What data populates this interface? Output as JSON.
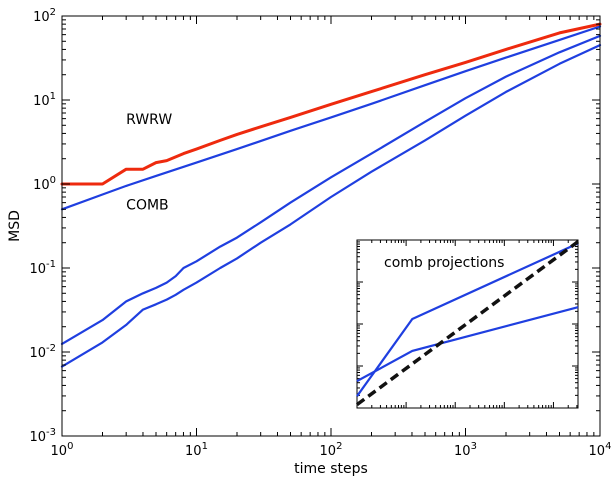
{
  "chart_data": [
    {
      "type": "line",
      "xlabel": "time steps",
      "ylabel": "MSD",
      "x_scale": "log",
      "y_scale": "log",
      "xlim": [
        1,
        10000
      ],
      "ylim": [
        0.001,
        100
      ],
      "x_ticks": [
        {
          "value": 1,
          "base": "10",
          "exp": "0"
        },
        {
          "value": 10,
          "base": "10",
          "exp": "1"
        },
        {
          "value": 100,
          "base": "10",
          "exp": "2"
        },
        {
          "value": 1000,
          "base": "10",
          "exp": "3"
        },
        {
          "value": 10000,
          "base": "10",
          "exp": "4"
        }
      ],
      "y_ticks": [
        {
          "value": 0.001,
          "base": "10",
          "exp": "-3"
        },
        {
          "value": 0.01,
          "base": "10",
          "exp": "-2"
        },
        {
          "value": 0.1,
          "base": "10",
          "exp": "-1"
        },
        {
          "value": 1,
          "base": "10",
          "exp": "0"
        },
        {
          "value": 10,
          "base": "10",
          "exp": "1"
        },
        {
          "value": 100,
          "base": "10",
          "exp": "2"
        }
      ],
      "grid": false,
      "annotations": [
        {
          "text": "RWRW",
          "x": 3,
          "y": 5.2
        },
        {
          "text": "COMB",
          "x": 3,
          "y": 0.5
        }
      ],
      "series": [
        {
          "color": "#ee2a0e",
          "width": 3,
          "points": [
            [
              1,
              1
            ],
            [
              2,
              1
            ],
            [
              3,
              1.5
            ],
            [
              4,
              1.5
            ],
            [
              5,
              1.8
            ],
            [
              6,
              1.9
            ],
            [
              8,
              2.3
            ],
            [
              10,
              2.6
            ],
            [
              15,
              3.3
            ],
            [
              20,
              3.9
            ],
            [
              30,
              4.8
            ],
            [
              50,
              6.2
            ],
            [
              100,
              8.9
            ],
            [
              200,
              12.6
            ],
            [
              500,
              20
            ],
            [
              1000,
              28
            ],
            [
              2000,
              40
            ],
            [
              5000,
              63
            ],
            [
              10000,
              80
            ]
          ]
        },
        {
          "color": "#1f3fe0",
          "width": 2.2,
          "points": [
            [
              1,
              0.5
            ],
            [
              2,
              0.75
            ],
            [
              3,
              0.95
            ],
            [
              5,
              1.25
            ],
            [
              10,
              1.8
            ],
            [
              20,
              2.6
            ],
            [
              50,
              4.3
            ],
            [
              100,
              6.2
            ],
            [
              200,
              9
            ],
            [
              500,
              15
            ],
            [
              1000,
              22
            ],
            [
              2000,
              32
            ],
            [
              5000,
              52
            ],
            [
              10000,
              75
            ]
          ]
        },
        {
          "color": "#1f3fe0",
          "width": 2.2,
          "points": [
            [
              1,
              0.0125
            ],
            [
              2,
              0.024
            ],
            [
              3,
              0.04
            ],
            [
              4,
              0.05
            ],
            [
              5,
              0.058
            ],
            [
              6,
              0.067
            ],
            [
              7,
              0.08
            ],
            [
              8,
              0.1
            ],
            [
              10,
              0.12
            ],
            [
              15,
              0.18
            ],
            [
              20,
              0.23
            ],
            [
              30,
              0.35
            ],
            [
              50,
              0.6
            ],
            [
              100,
              1.2
            ],
            [
              200,
              2.3
            ],
            [
              500,
              5.5
            ],
            [
              1000,
              10.5
            ],
            [
              2000,
              19
            ],
            [
              5000,
              37
            ],
            [
              10000,
              58
            ]
          ]
        },
        {
          "color": "#1f3fe0",
          "width": 2.2,
          "points": [
            [
              1,
              0.0067
            ],
            [
              2,
              0.013
            ],
            [
              3,
              0.021
            ],
            [
              4,
              0.032
            ],
            [
              5,
              0.037
            ],
            [
              6,
              0.042
            ],
            [
              7,
              0.048
            ],
            [
              8,
              0.055
            ],
            [
              10,
              0.067
            ],
            [
              15,
              0.1
            ],
            [
              20,
              0.13
            ],
            [
              30,
              0.2
            ],
            [
              50,
              0.33
            ],
            [
              100,
              0.7
            ],
            [
              200,
              1.4
            ],
            [
              500,
              3.3
            ],
            [
              1000,
              6.5
            ],
            [
              2000,
              12.5
            ],
            [
              5000,
              27
            ],
            [
              10000,
              45
            ]
          ]
        }
      ]
    },
    {
      "type": "line",
      "title": "comb projections",
      "x_scale": "log",
      "y_scale": "log",
      "series": [
        {
          "color": "#1f3fe0",
          "width": 2.2,
          "style": "solid",
          "points": [
            [
              0,
              0.07
            ],
            [
              0.25,
              0.53
            ],
            [
              1,
              0.98
            ]
          ]
        },
        {
          "color": "#1f3fe0",
          "width": 2.2,
          "style": "solid",
          "points": [
            [
              0,
              0.16
            ],
            [
              0.25,
              0.34
            ],
            [
              1,
              0.6
            ]
          ]
        },
        {
          "color": "#111111",
          "width": 3.5,
          "style": "dashed",
          "points": [
            [
              0,
              0.02
            ],
            [
              1,
              0.99
            ]
          ]
        }
      ]
    }
  ]
}
